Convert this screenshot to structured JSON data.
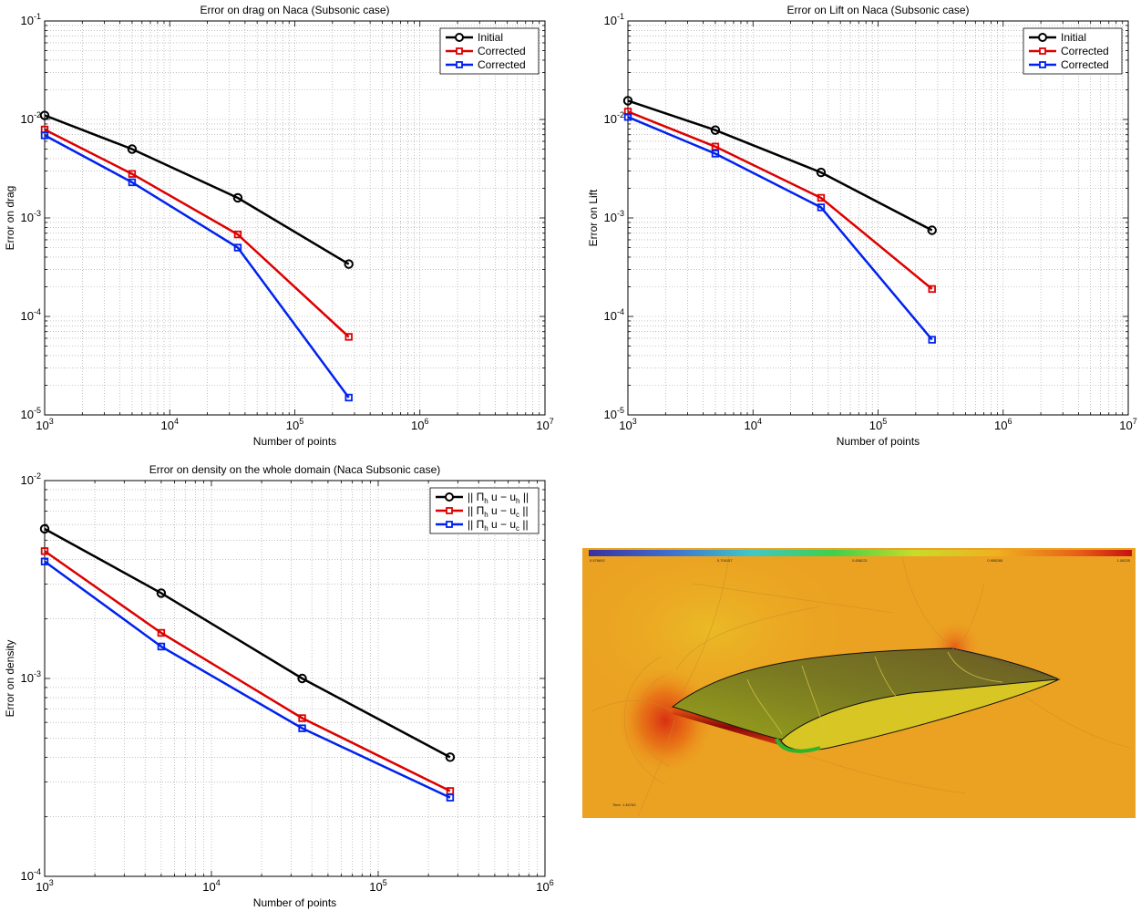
{
  "chart_data": [
    {
      "type": "line",
      "title": "Error on drag on Naca (Subsonic case)",
      "xlabel": "Number of points",
      "ylabel": "Error on drag",
      "xscale": "log",
      "yscale": "log",
      "xlim": [
        1000,
        10000000
      ],
      "ylim": [
        1e-05,
        0.1
      ],
      "grid": true,
      "legend_position": "top-right",
      "x": [
        1000,
        5000,
        35000,
        270000
      ],
      "series": [
        {
          "name": "Initial",
          "color": "#000000",
          "marker": "circle",
          "values": [
            0.011,
            0.005,
            0.0016,
            0.00034
          ]
        },
        {
          "name": "Corrected",
          "color": "#dd0000",
          "marker": "square",
          "values": [
            0.0079,
            0.0028,
            0.00068,
            6.2e-05
          ]
        },
        {
          "name": "Corrected",
          "color": "#0022ee",
          "marker": "square",
          "values": [
            0.0069,
            0.0023,
            0.0005,
            1.5e-05
          ]
        }
      ]
    },
    {
      "type": "line",
      "title": "Error on Lift on Naca (Subsonic case)",
      "xlabel": "Number of points",
      "ylabel": "Error on Lift",
      "xscale": "log",
      "yscale": "log",
      "xlim": [
        1000,
        10000000
      ],
      "ylim": [
        1e-05,
        0.1
      ],
      "grid": true,
      "legend_position": "top-right",
      "x": [
        1000,
        5000,
        35000,
        270000
      ],
      "series": [
        {
          "name": "Initial",
          "color": "#000000",
          "marker": "circle",
          "values": [
            0.0155,
            0.0078,
            0.0029,
            0.00075
          ]
        },
        {
          "name": "Corrected",
          "color": "#dd0000",
          "marker": "square",
          "values": [
            0.012,
            0.0053,
            0.0016,
            0.00019
          ]
        },
        {
          "name": "Corrected",
          "color": "#0022ee",
          "marker": "square",
          "values": [
            0.0106,
            0.0045,
            0.00128,
            5.8e-05
          ]
        }
      ]
    },
    {
      "type": "line",
      "title": "Error on density on the whole domain (Naca Subsonic case)",
      "xlabel": "Number of points",
      "ylabel": "Error on density",
      "xscale": "log",
      "yscale": "log",
      "xlim": [
        1000,
        1000000
      ],
      "ylim": [
        0.0001,
        0.01
      ],
      "grid": true,
      "legend_position": "top-right",
      "x": [
        1000,
        5000,
        35000,
        270000
      ],
      "series": [
        {
          "name": "|| Πh u − uh ||",
          "color": "#000000",
          "marker": "circle",
          "values": [
            0.0057,
            0.0027,
            0.001,
            0.0004
          ]
        },
        {
          "name": "|| Πh u − uc ||",
          "color": "#dd0000",
          "marker": "square",
          "values": [
            0.0044,
            0.0017,
            0.00063,
            0.00027
          ]
        },
        {
          "name": "|| Πh u − uc ||",
          "color": "#0022ee",
          "marker": "square",
          "values": [
            0.0039,
            0.00145,
            0.00056,
            0.00025
          ]
        }
      ]
    }
  ],
  "flow_image": {
    "colorbar_labels": [
      "0.576692",
      "0.704157",
      "0.836221",
      "0.958285",
      "1.08235"
    ],
    "time_label": "Time: 1.46763"
  }
}
